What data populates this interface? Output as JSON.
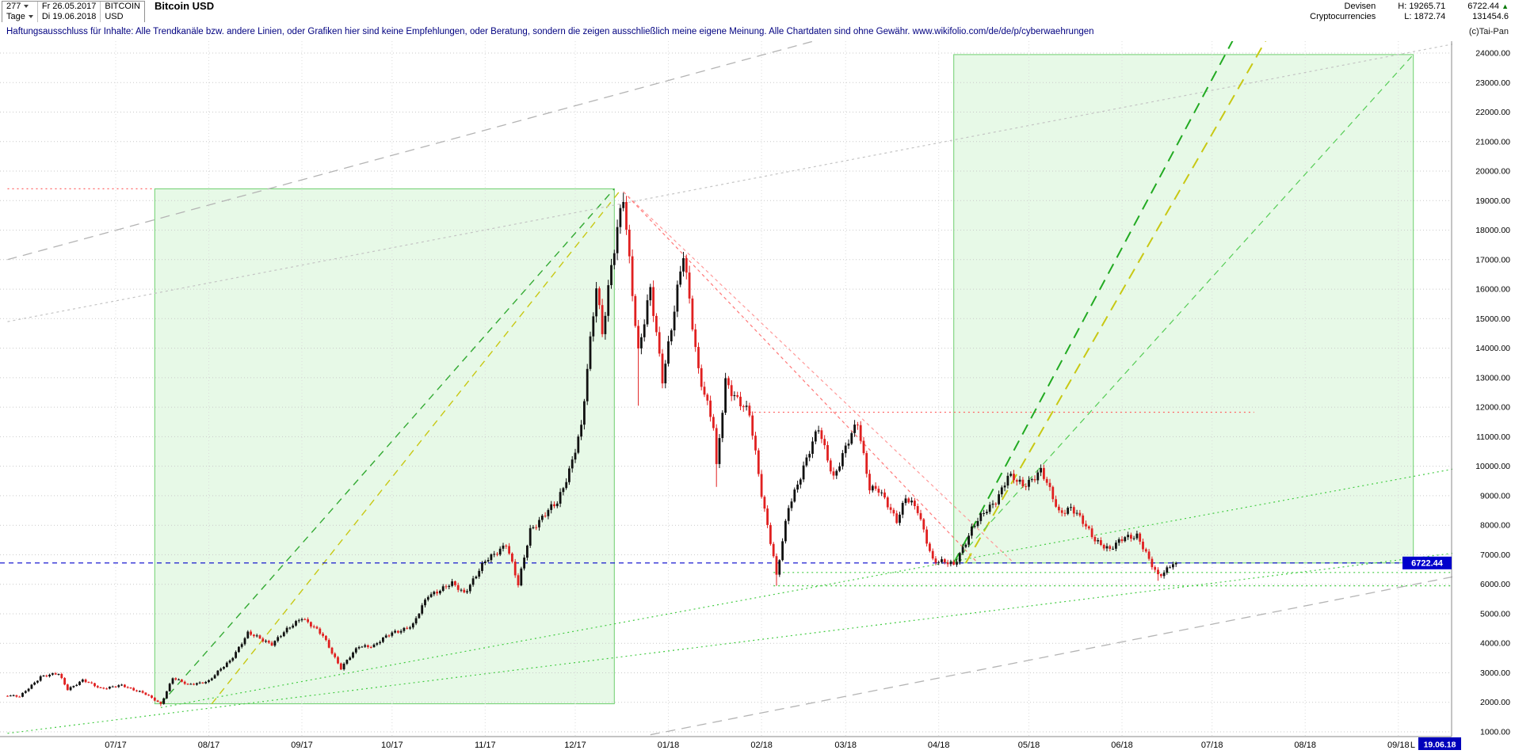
{
  "header": {
    "bars_count": "277",
    "period": "Tage",
    "start_date": "Fr 26.05.2017",
    "end_date": "Di 19.06.2018",
    "symbol_base": "BITCOIN",
    "symbol_quote": "USD",
    "title": "Bitcoin USD",
    "right": {
      "category_line1": "Devisen",
      "category_line2": "Cryptocurrencies",
      "high_label": "H:",
      "high_value": "19265.71",
      "low_label": "L:",
      "low_value": "1872.74",
      "last_value": "6722.44",
      "last_direction": "▲",
      "volume_value": "131454.6"
    }
  },
  "disclaimer": {
    "text": "Haftungsausschluss für Inhalte: Alle Trendkanäle bzw. andere Linien, oder Grafiken hier sind keine Empfehlungen, oder Beratung, sondern die zeigen ausschließlich meine eigene Meinung. Alle Chartdaten sind ohne Gewähr.  www.wikifolio.com/de/de/p/cyberwaehrungen",
    "copyright": "(c)Tai-Pan"
  },
  "chart_data": {
    "type": "candlestick",
    "title": "Bitcoin USD",
    "x_axis": {
      "labels": [
        {
          "label": "07/17",
          "date": "2017-07-01"
        },
        {
          "label": "08/17",
          "date": "2017-08-01"
        },
        {
          "label": "09/17",
          "date": "2017-09-01"
        },
        {
          "label": "10/17",
          "date": "2017-10-01"
        },
        {
          "label": "11/17",
          "date": "2017-11-01"
        },
        {
          "label": "12/17",
          "date": "2017-12-01"
        },
        {
          "label": "01/18",
          "date": "2018-01-01"
        },
        {
          "label": "02/18",
          "date": "2018-02-01"
        },
        {
          "label": "03/18",
          "date": "2018-03-01"
        },
        {
          "label": "04/18",
          "date": "2018-04-01"
        },
        {
          "label": "05/18",
          "date": "2018-05-01"
        },
        {
          "label": "06/18",
          "date": "2018-06-01"
        },
        {
          "label": "07/18",
          "date": "2018-07-01"
        },
        {
          "label": "08/18",
          "date": "2018-08-01"
        },
        {
          "label": "09/18",
          "date": "2018-09-01"
        }
      ],
      "last_marker": {
        "prefix": "L",
        "label": "19.06.18",
        "color": "#0000bb"
      }
    },
    "y_axis": {
      "min": 840,
      "max": 24400,
      "tick_step": 1000,
      "grid": true,
      "position": "right"
    },
    "y_ticks": [
      1000,
      2000,
      3000,
      4000,
      5000,
      6000,
      7000,
      8000,
      9000,
      10000,
      11000,
      12000,
      13000,
      14000,
      15000,
      16000,
      17000,
      18000,
      19000,
      20000,
      21000,
      22000,
      23000,
      24000
    ],
    "stats": {
      "high": 19265.71,
      "low": 1872.74,
      "last": 6722.44
    },
    "last_price_line": {
      "value": 6722.44,
      "label": "6722.44",
      "color": "#0000cc"
    },
    "colors": {
      "up": "#111111",
      "down": "#e02020",
      "grid": "#c9c9c9",
      "box_fill": "#e7f9e7",
      "box_stroke": "#6fcf6f"
    },
    "series_keyframes": [
      [
        "2017-05-26",
        2250
      ],
      [
        "2017-05-30",
        2180
      ],
      [
        "2017-06-06",
        2880
      ],
      [
        "2017-06-12",
        2960
      ],
      [
        "2017-06-15",
        2450
      ],
      [
        "2017-06-20",
        2740
      ],
      [
        "2017-06-26",
        2480
      ],
      [
        "2017-07-03",
        2560
      ],
      [
        "2017-07-10",
        2340
      ],
      [
        "2017-07-16",
        1930
      ],
      [
        "2017-07-20",
        2850
      ],
      [
        "2017-07-25",
        2580
      ],
      [
        "2017-08-01",
        2730
      ],
      [
        "2017-08-08",
        3410
      ],
      [
        "2017-08-14",
        4330
      ],
      [
        "2017-08-22",
        3990
      ],
      [
        "2017-09-01",
        4900
      ],
      [
        "2017-09-08",
        4240
      ],
      [
        "2017-09-14",
        3160
      ],
      [
        "2017-09-20",
        3900
      ],
      [
        "2017-09-25",
        3930
      ],
      [
        "2017-10-01",
        4350
      ],
      [
        "2017-10-08",
        4610
      ],
      [
        "2017-10-13",
        5640
      ],
      [
        "2017-10-21",
        6000
      ],
      [
        "2017-10-25",
        5720
      ],
      [
        "2017-11-01",
        6750
      ],
      [
        "2017-11-08",
        7400
      ],
      [
        "2017-11-12",
        5950
      ],
      [
        "2017-11-16",
        7870
      ],
      [
        "2017-11-25",
        8760
      ],
      [
        "2017-11-29",
        9900
      ],
      [
        "2017-12-03",
        11250
      ],
      [
        "2017-12-08",
        16200
      ],
      [
        "2017-12-10",
        14600
      ],
      [
        "2017-12-13",
        16700
      ],
      [
        "2017-12-17",
        19100
      ],
      [
        "2017-12-22",
        13900
      ],
      [
        "2017-12-26",
        15900
      ],
      [
        "2017-12-30",
        13000
      ],
      [
        "2018-01-06",
        17100
      ],
      [
        "2018-01-11",
        13300
      ],
      [
        "2018-01-16",
        11300
      ],
      [
        "2018-01-17",
        9900
      ],
      [
        "2018-01-20",
        12900
      ],
      [
        "2018-01-28",
        11700
      ],
      [
        "2018-02-01",
        9100
      ],
      [
        "2018-02-05",
        6940
      ],
      [
        "2018-02-06",
        6250
      ],
      [
        "2018-02-10",
        8600
      ],
      [
        "2018-02-15",
        10000
      ],
      [
        "2018-02-20",
        11250
      ],
      [
        "2018-02-25",
        9650
      ],
      [
        "2018-03-05",
        11500
      ],
      [
        "2018-03-09",
        9300
      ],
      [
        "2018-03-12",
        9150
      ],
      [
        "2018-03-18",
        8200
      ],
      [
        "2018-03-21",
        8950
      ],
      [
        "2018-03-25",
        8450
      ],
      [
        "2018-03-30",
        6850
      ],
      [
        "2018-04-06",
        6630
      ],
      [
        "2018-04-12",
        7890
      ],
      [
        "2018-04-20",
        8870
      ],
      [
        "2018-04-24",
        9650
      ],
      [
        "2018-04-29",
        9350
      ],
      [
        "2018-05-05",
        9840
      ],
      [
        "2018-05-11",
        8450
      ],
      [
        "2018-05-15",
        8600
      ],
      [
        "2018-05-23",
        7550
      ],
      [
        "2018-05-28",
        7130
      ],
      [
        "2018-06-02",
        7640
      ],
      [
        "2018-06-06",
        7650
      ],
      [
        "2018-06-10",
        6790
      ],
      [
        "2018-06-13",
        6310
      ],
      [
        "2018-06-15",
        6450
      ],
      [
        "2018-06-18",
        6710
      ],
      [
        "2018-06-19",
        6722.44
      ]
    ],
    "forced_extremes": [
      {
        "date": "2017-07-16",
        "low": 1872.74
      },
      {
        "date": "2017-12-17",
        "high": 19265.71
      },
      {
        "date": "2017-12-22",
        "low": 12050
      },
      {
        "date": "2018-01-17",
        "low": 9300
      },
      {
        "date": "2018-02-06",
        "low": 5950
      },
      {
        "date": "2018-06-13",
        "low": 6120
      }
    ],
    "boxes": [
      {
        "x1": "2017-07-14",
        "y1": 1950,
        "x2": "2017-12-14",
        "y2": 19400
      },
      {
        "x1": "2018-04-06",
        "y1": 6722,
        "x2": "2018-09-06",
        "y2": 23950
      }
    ],
    "trend_lines": [
      {
        "name": "uptrend-2017-green",
        "x1": "2017-07-16",
        "y1": 1950,
        "x2": "2017-12-14",
        "y2": 19400,
        "color": "#33aa33",
        "dash": "9,7",
        "width": 1.4
      },
      {
        "name": "uptrend-2017-yellow",
        "x1": "2017-08-02",
        "y1": 1950,
        "x2": "2017-12-16",
        "y2": 19350,
        "color": "#c8c814",
        "dash": "9,7",
        "width": 1.4
      },
      {
        "name": "support-dotted-long",
        "x1": "2017-07-16",
        "y1": 1820,
        "x2": "2018-09-19",
        "y2": 9900,
        "color": "#44cc44",
        "dash": "2,4",
        "width": 1.2
      },
      {
        "name": "support-dotted-lower",
        "x1": "2017-05-26",
        "y1": 950,
        "x2": "2018-09-19",
        "y2": 7050,
        "color": "#44cc44",
        "dash": "2,4",
        "width": 1.2
      },
      {
        "name": "resistance-19400",
        "x1": "2017-05-26",
        "y1": 19400,
        "x2": "2017-07-14",
        "y2": 19400,
        "color": "#ff6666",
        "dash": "2,4",
        "width": 1.2
      },
      {
        "name": "resistance-11830",
        "x1": "2018-01-28",
        "y1": 11830,
        "x2": "2018-07-15",
        "y2": 11830,
        "color": "#ff6666",
        "dash": "2,4",
        "width": 1.2
      },
      {
        "name": "downtrend-red-steep",
        "x1": "2017-12-17",
        "y1": 19300,
        "x2": "2018-04-14",
        "y2": 6722,
        "color": "#ff7777",
        "dash": "4,4",
        "width": 1.2
      },
      {
        "name": "downtrend-red-shallow",
        "x1": "2017-12-17",
        "y1": 19300,
        "x2": "2018-04-26",
        "y2": 6722,
        "color": "#ff9999",
        "dash": "4,4",
        "width": 1.2
      },
      {
        "name": "gray-channel-upper",
        "x1": "2017-05-26",
        "y1": 17000,
        "x2": "2018-02-20",
        "y2": 24450,
        "color": "#b4b4b4",
        "dash": "12,8",
        "width": 1.3
      },
      {
        "name": "gray-dotted-long",
        "x1": "2017-05-26",
        "y1": 14900,
        "x2": "2018-09-19",
        "y2": 24300,
        "color": "#c4c4c4",
        "dash": "3,4",
        "width": 1.2
      },
      {
        "name": "gray-channel-lower",
        "x1": "2017-12-26",
        "y1": 900,
        "x2": "2018-09-19",
        "y2": 6250,
        "color": "#b4b4b4",
        "dash": "12,8",
        "width": 1.3
      },
      {
        "name": "uptrend-2018-green",
        "x1": "2018-04-06",
        "y1": 6722,
        "x2": "2018-07-08",
        "y2": 24450,
        "color": "#22aa22",
        "dash": "14,9",
        "width": 2
      },
      {
        "name": "uptrend-2018-yellow",
        "x1": "2018-04-10",
        "y1": 6722,
        "x2": "2018-07-19",
        "y2": 24450,
        "color": "#c8c814",
        "dash": "14,9",
        "width": 2
      },
      {
        "name": "box2-diagonal",
        "x1": "2018-04-06",
        "y1": 6722,
        "x2": "2018-09-06",
        "y2": 23950,
        "color": "#55cc55",
        "dash": "8,6",
        "width": 1.2
      },
      {
        "name": "support-6400",
        "x1": "2018-02-05",
        "y1": 6400,
        "x2": "2018-09-19",
        "y2": 6400,
        "color": "#44cc44",
        "dash": "2,4",
        "width": 1.2
      },
      {
        "name": "support-5950",
        "x1": "2018-02-05",
        "y1": 5950,
        "x2": "2018-09-19",
        "y2": 5950,
        "color": "#44cc44",
        "dash": "2,4",
        "width": 1.2
      }
    ]
  }
}
